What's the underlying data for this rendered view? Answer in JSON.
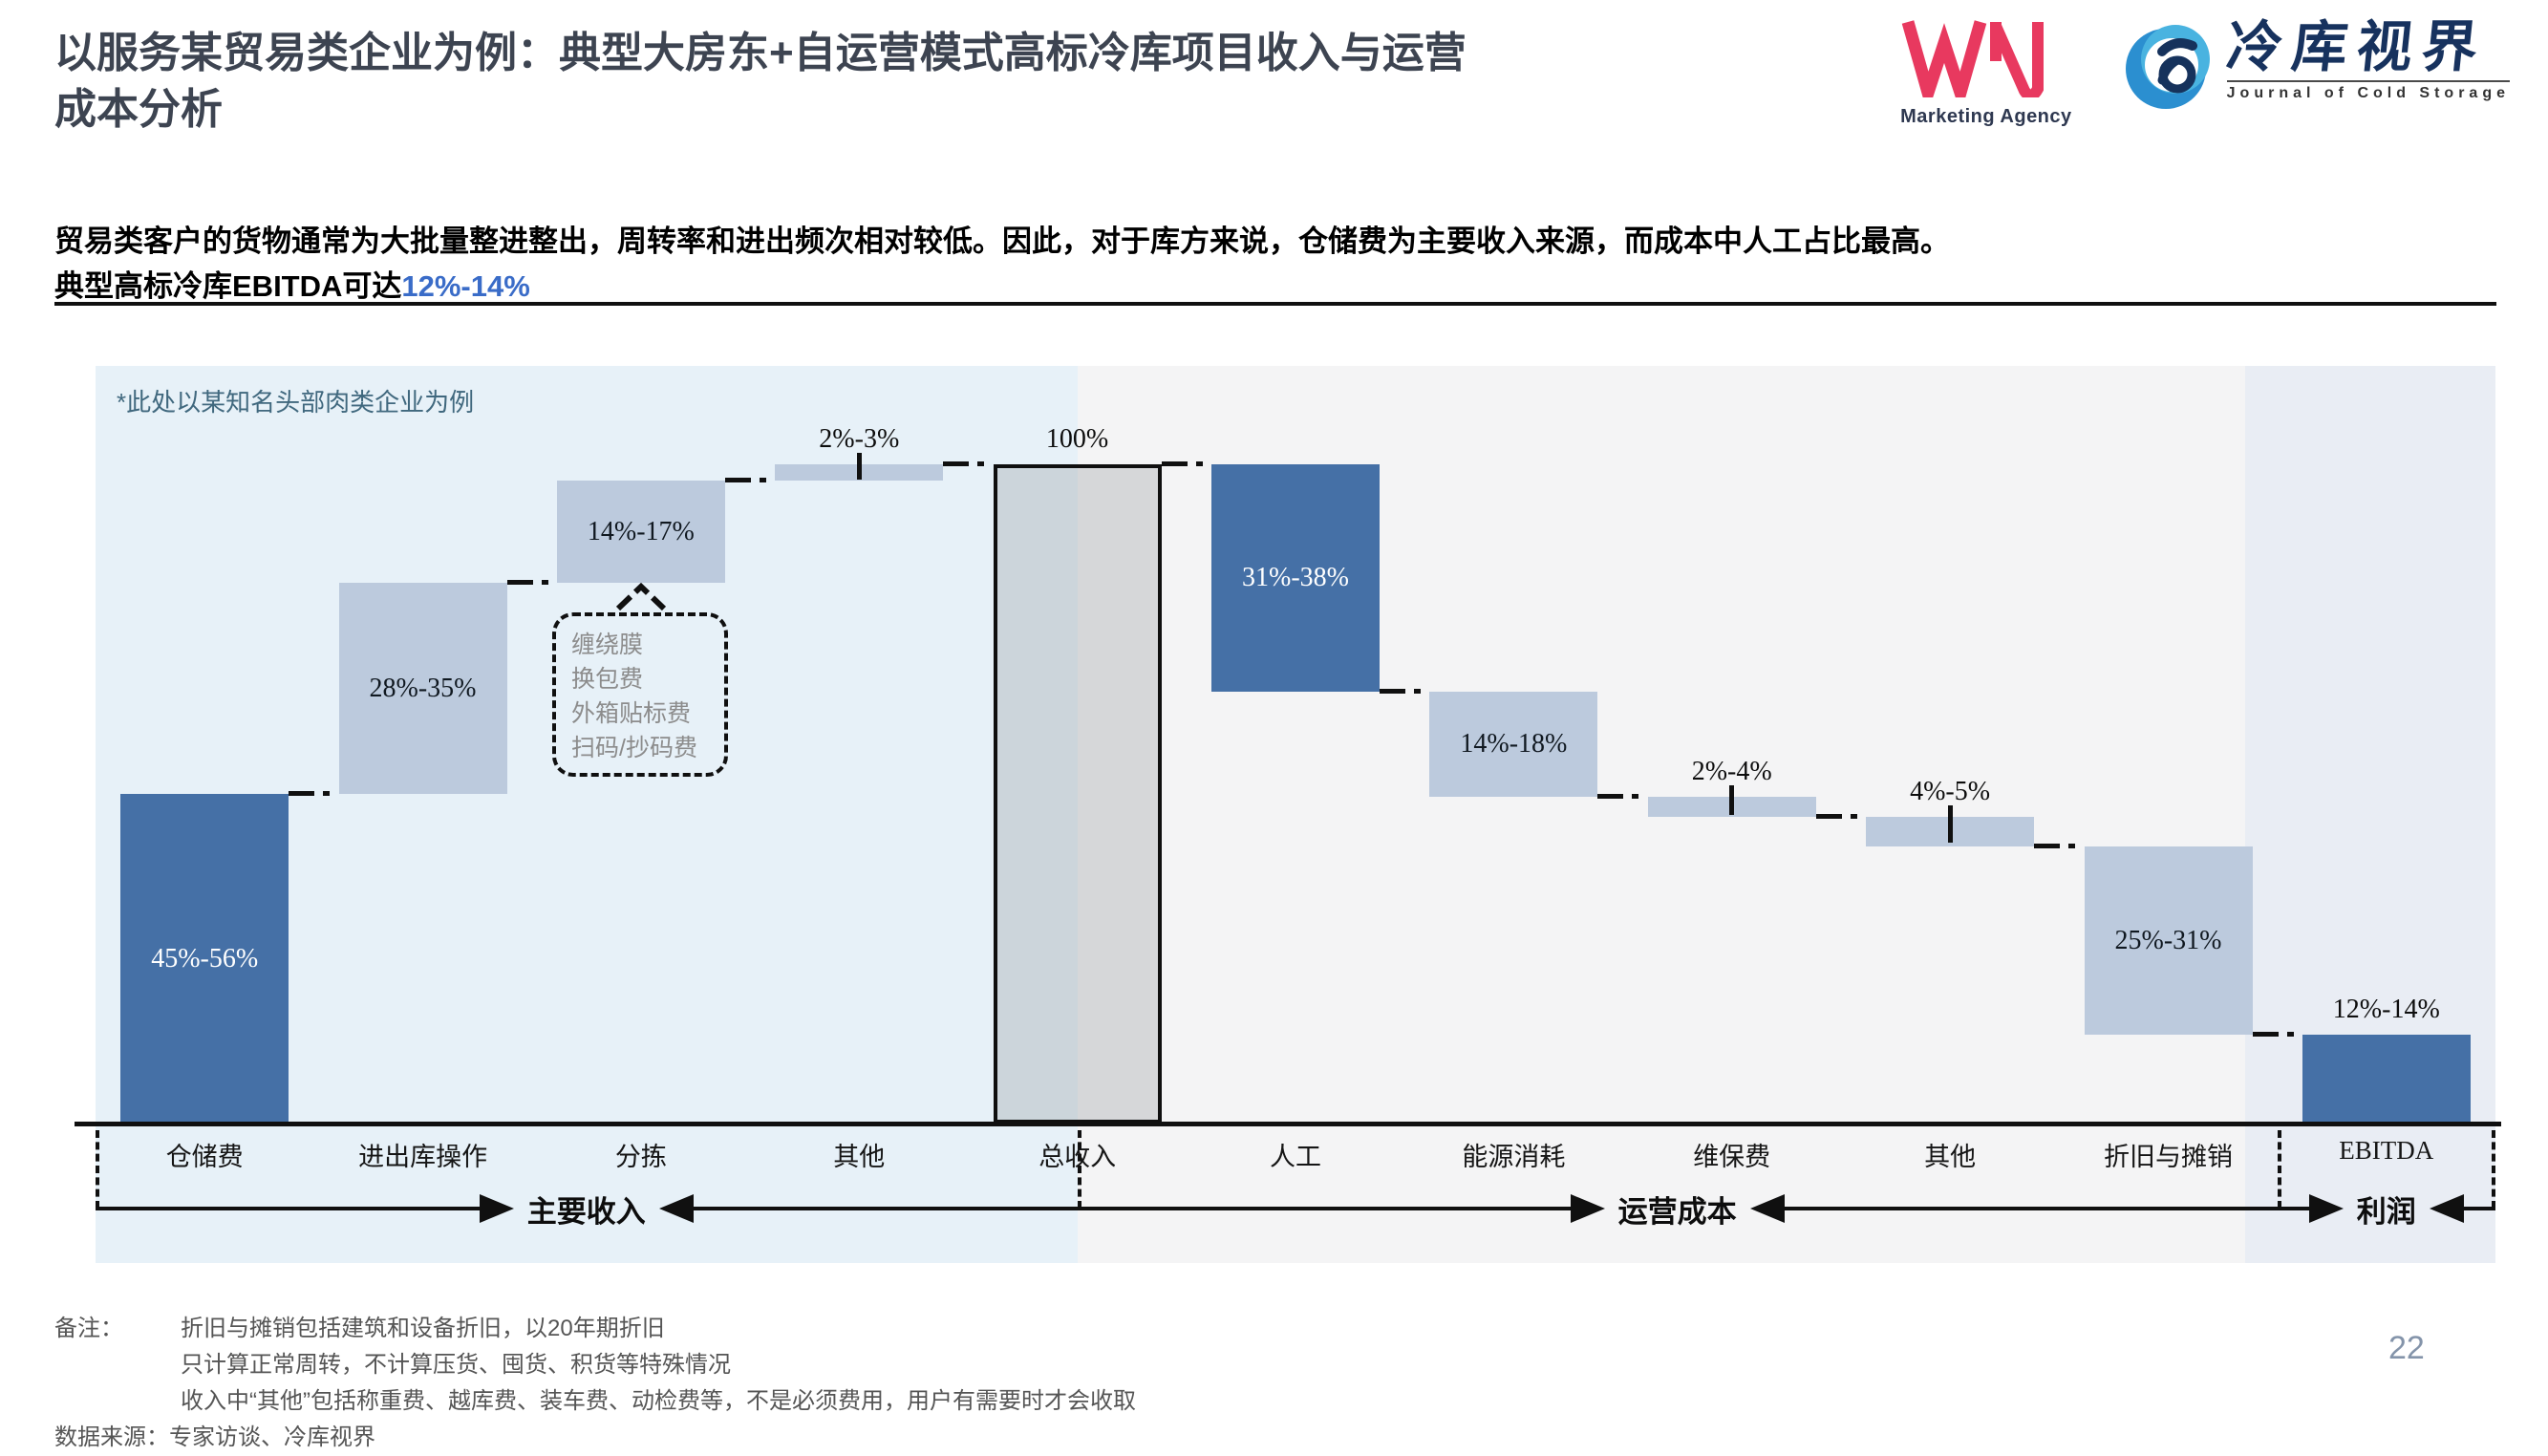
{
  "header": {
    "title_line1": "以服务某贸易类企业为例：典型大房东+自运营模式高标冷库项目收入与运营",
    "title_line2": "成本分析",
    "logos": {
      "wn_caption": "Marketing Agency",
      "journal_cn": "冷库视界",
      "journal_en": "Journal of Cold Storage"
    }
  },
  "intro": {
    "line1": "贸易类客户的货物通常为大批量整进整出，周转率和进出频次相对较低。因此，对于库方来说，仓储费为主要收入来源，而成本中人工占比最高。",
    "line2_prefix": "典型高标冷库EBITDA可达",
    "line2_highlight": "12%-14%"
  },
  "chart_note": "*此处以某知名头部肉类企业为例",
  "callout": {
    "lines": [
      "缠绕膜",
      "换包费",
      "外箱贴标费",
      "扫码/抄码费"
    ]
  },
  "chart_data": {
    "type": "waterfall",
    "unit": "percent of total revenue",
    "ylim": [
      0,
      100
    ],
    "items": [
      {
        "label": "仓储费",
        "value": "45%-56%",
        "from": 0,
        "to": 50,
        "style": "dark",
        "text": "inside-light"
      },
      {
        "label": "进出库操作",
        "value": "28%-35%",
        "from": 50,
        "to": 82,
        "style": "light",
        "text": "inside-dark"
      },
      {
        "label": "分拣",
        "value": "14%-17%",
        "from": 82,
        "to": 97.5,
        "style": "light",
        "text": "inside-dark"
      },
      {
        "label": "其他",
        "value": "2%-3%",
        "from": 97.5,
        "to": 100,
        "style": "light",
        "text": "above",
        "tick": true
      },
      {
        "label": "总收入",
        "value": "100%",
        "from": 0,
        "to": 100,
        "style": "total",
        "text": "above"
      },
      {
        "label": "人工",
        "value": "31%-38%",
        "from": 100,
        "to": 65.5,
        "style": "dark",
        "text": "inside-light"
      },
      {
        "label": "能源消耗",
        "value": "14%-18%",
        "from": 65.5,
        "to": 49.5,
        "style": "light",
        "text": "inside-dark"
      },
      {
        "label": "维保费",
        "value": "2%-4%",
        "from": 49.5,
        "to": 46.5,
        "style": "light",
        "text": "above",
        "tick": true
      },
      {
        "label": "其他",
        "value": "4%-5%",
        "from": 46.5,
        "to": 42,
        "style": "light",
        "text": "above",
        "tick": true
      },
      {
        "label": "折旧与摊销",
        "value": "25%-31%",
        "from": 42,
        "to": 13.5,
        "style": "light",
        "text": "inside-dark"
      },
      {
        "label": "EBITDA",
        "value": "12%-14%",
        "from": 0,
        "to": 13.5,
        "style": "dark",
        "text": "above"
      }
    ],
    "connector_levels": [
      50,
      82,
      97.5,
      100,
      100,
      65.5,
      49.5,
      46.5,
      42,
      13.5
    ],
    "groups": [
      {
        "label": "主要收入",
        "from_col": 0,
        "to_col": 4.5
      },
      {
        "label": "运营成本",
        "from_col": 4.5,
        "to_col": 10
      },
      {
        "label": "利润",
        "from_col": 10,
        "to_col": 11
      }
    ]
  },
  "footnotes": {
    "label": "备注：",
    "lines": [
      "折旧与摊销包括建筑和设备折旧，以20年期折旧",
      "只计算正常周转，不计算压货、囤货、积货等特殊情况",
      "收入中“其他”包括称重费、越库费、装车费、动检费等，不是必须费用，用户有需要时才会收取"
    ],
    "source_label": "数据来源：",
    "source_value": "专家访谈、冷库视界"
  },
  "page_number": "22",
  "colors": {
    "dark_bar": "#4570a6",
    "light_bar": "#bccadd",
    "total_bar_border": "#0f0f0f",
    "zone_revenue_bg": "#e7f1f8",
    "zone_cost_bg": "#f4f4f5",
    "zone_profit_bg": "#e9edf4",
    "intro_highlight": "#3a6cc8",
    "wn_logo_pink": "#e8395f",
    "journal_logo_blue": "#2b8fd0",
    "journal_logo_navy": "#17325e"
  }
}
